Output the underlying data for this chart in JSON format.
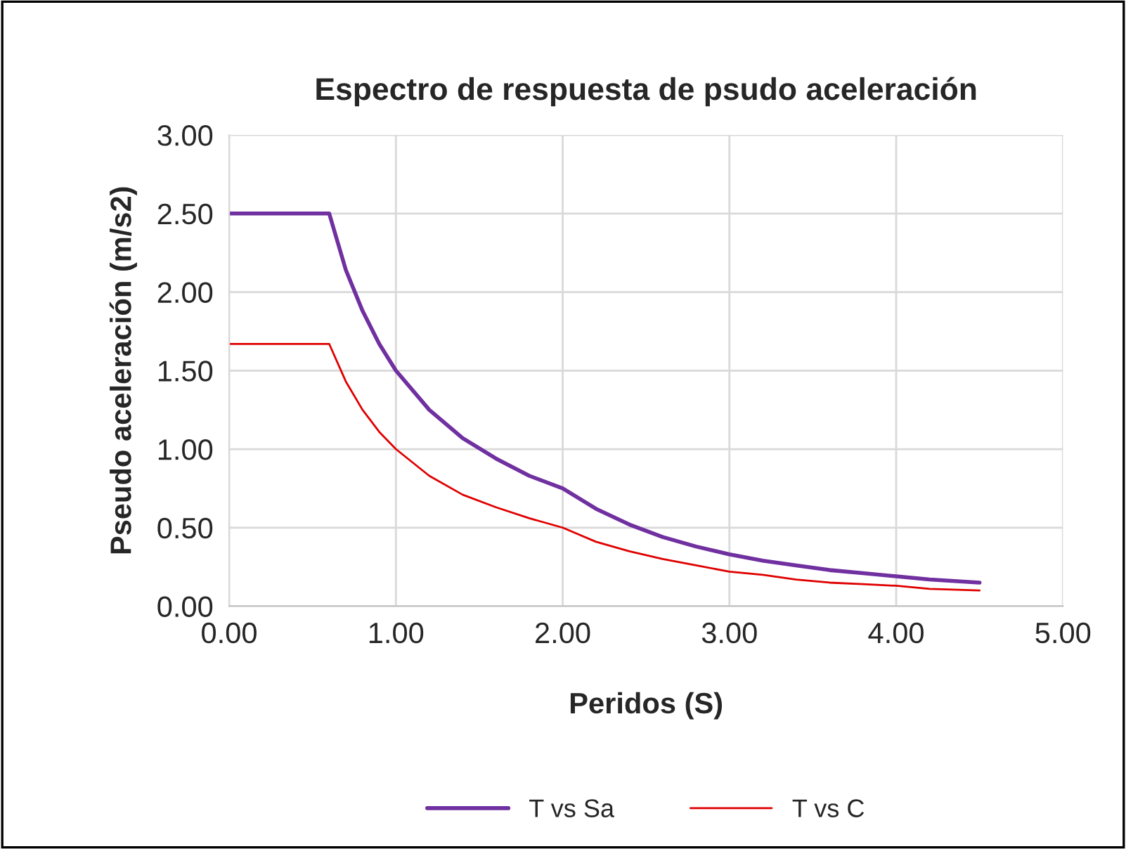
{
  "chart_data": {
    "type": "line",
    "title": "Espectro de respuesta de psudo aceleración",
    "xlabel": "Peridos (S)",
    "ylabel": "Pseudo aceleración (m/s2)",
    "x": [
      0,
      0.6,
      0.7,
      0.8,
      0.9,
      1.0,
      1.2,
      1.4,
      1.6,
      1.8,
      2.0,
      2.2,
      2.4,
      2.6,
      2.8,
      3.0,
      3.2,
      3.4,
      3.6,
      3.8,
      4.0,
      4.2,
      4.5
    ],
    "series": [
      {
        "name": "T vs Sa",
        "color": "#7030a0",
        "values": [
          2.5,
          2.5,
          2.14,
          1.88,
          1.67,
          1.5,
          1.25,
          1.07,
          0.94,
          0.83,
          0.75,
          0.62,
          0.52,
          0.44,
          0.38,
          0.33,
          0.29,
          0.26,
          0.23,
          0.21,
          0.19,
          0.17,
          0.15
        ]
      },
      {
        "name": "T vs C",
        "color": "#e00000",
        "values": [
          1.67,
          1.67,
          1.43,
          1.25,
          1.11,
          1.0,
          0.83,
          0.71,
          0.63,
          0.56,
          0.5,
          0.41,
          0.35,
          0.3,
          0.26,
          0.22,
          0.2,
          0.17,
          0.15,
          0.14,
          0.13,
          0.11,
          0.1
        ]
      }
    ],
    "xlim": [
      0,
      5
    ],
    "xticks": [
      {
        "value": 0,
        "label": "0.00"
      },
      {
        "value": 1,
        "label": "1.00"
      },
      {
        "value": 2,
        "label": "2.00"
      },
      {
        "value": 3,
        "label": "3.00"
      },
      {
        "value": 4,
        "label": "4.00"
      },
      {
        "value": 5,
        "label": "5.00"
      }
    ],
    "ylim": [
      0,
      3
    ],
    "yticks": [
      {
        "value": 0,
        "label": "0.00"
      },
      {
        "value": 0.5,
        "label": "0.50"
      },
      {
        "value": 1,
        "label": "1.00"
      },
      {
        "value": 1.5,
        "label": "1.50"
      },
      {
        "value": 2,
        "label": "2.00"
      },
      {
        "value": 2.5,
        "label": "2.50"
      },
      {
        "value": 3,
        "label": "3.00"
      }
    ],
    "grid": true,
    "legend": "bottom",
    "marker": "none",
    "line_style": "solid"
  }
}
